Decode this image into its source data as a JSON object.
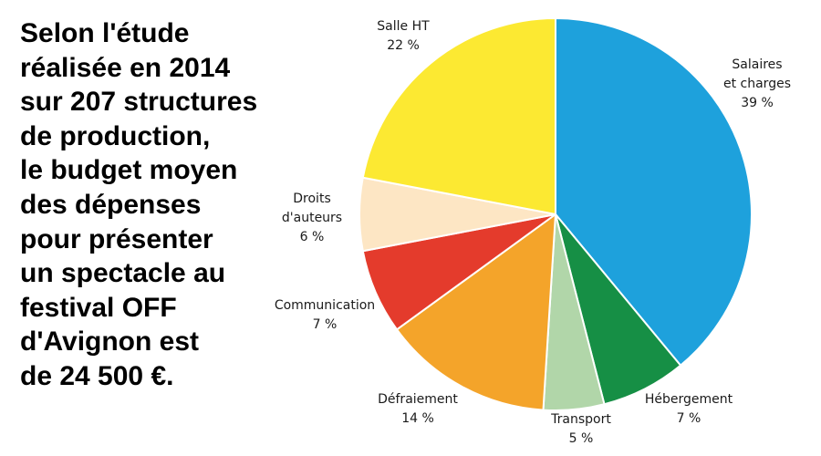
{
  "intro_text": {
    "lines": [
      "Selon l'étude",
      "réalisée en 2014",
      "sur 207 structures",
      "de production,",
      "le budget moyen",
      "des dépenses",
      "pour présenter",
      "un spectacle au",
      "festival OFF",
      "d'Avignon est",
      "de 24 500 €."
    ]
  },
  "chart_data": {
    "type": "pie",
    "title": "",
    "slices": [
      {
        "label_lines": [
          "Salaires",
          "et charges"
        ],
        "value_text": "39 %",
        "value": 39,
        "color": "#1ea1dc"
      },
      {
        "label_lines": [
          "Hébergement"
        ],
        "value_text": "7 %",
        "value": 7,
        "color": "#168f45"
      },
      {
        "label_lines": [
          "Transport"
        ],
        "value_text": "5 %",
        "value": 5,
        "color": "#b1d6a9"
      },
      {
        "label_lines": [
          "Défraiement"
        ],
        "value_text": "14 %",
        "value": 14,
        "color": "#f4a42a"
      },
      {
        "label_lines": [
          "Communication"
        ],
        "value_text": "7 %",
        "value": 7,
        "color": "#e43b2c"
      },
      {
        "label_lines": [
          "Droits",
          "d'auteurs"
        ],
        "value_text": "6 %",
        "value": 6,
        "color": "#fde6c4"
      },
      {
        "label_lines": [
          "Salle HT"
        ],
        "value_text": "22 %",
        "value": 22,
        "color": "#fce932"
      }
    ],
    "start": "12 o'clock",
    "direction": "clockwise",
    "legend": "none"
  }
}
